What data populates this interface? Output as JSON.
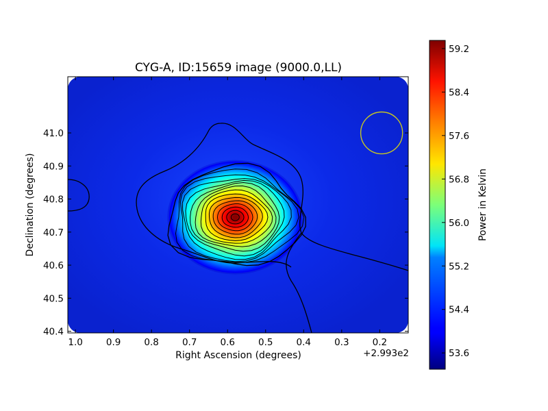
{
  "chart_data": {
    "type": "heatmap",
    "title": "CYG-A, ID:15659 image (9000.0,LL)",
    "xlabel": "Right Ascension (degrees)",
    "ylabel": "Declination (degrees)",
    "x_offset_label": "+2.993e2",
    "xlim": [
      1.02,
      0.125
    ],
    "ylim": [
      40.395,
      41.17
    ],
    "x_ticks": [
      1.0,
      0.9,
      0.8,
      0.7,
      0.6,
      0.5,
      0.4,
      0.3,
      0.2
    ],
    "x_tick_labels": [
      "1.0",
      "0.9",
      "0.8",
      "0.7",
      "0.6",
      "0.5",
      "0.4",
      "0.3",
      "0.2"
    ],
    "y_ticks": [
      40.4,
      40.5,
      40.6,
      40.7,
      40.8,
      40.9,
      41.0
    ],
    "y_tick_labels": [
      "40.4",
      "40.5",
      "40.6",
      "40.7",
      "40.8",
      "40.9",
      "41.0"
    ],
    "colorbar": {
      "label": "Power in Kelvin",
      "range": [
        53.3,
        59.35
      ],
      "ticks": [
        53.6,
        54.4,
        55.2,
        56.0,
        56.8,
        57.6,
        58.4,
        59.2
      ],
      "tick_labels": [
        "53.6",
        "54.4",
        "55.2",
        "56.0",
        "56.8",
        "57.6",
        "58.4",
        "59.2"
      ],
      "colormap": "jet"
    },
    "source": {
      "ra_center": 0.58,
      "dec_center": 40.745,
      "peak_kelvin": 59.3,
      "background_kelvin": 53.8
    },
    "beam": {
      "ra": 0.195,
      "dec": 41.0,
      "radius_deg": 0.055,
      "color": "#c8c820"
    },
    "contour_count": 15,
    "grid": false
  }
}
